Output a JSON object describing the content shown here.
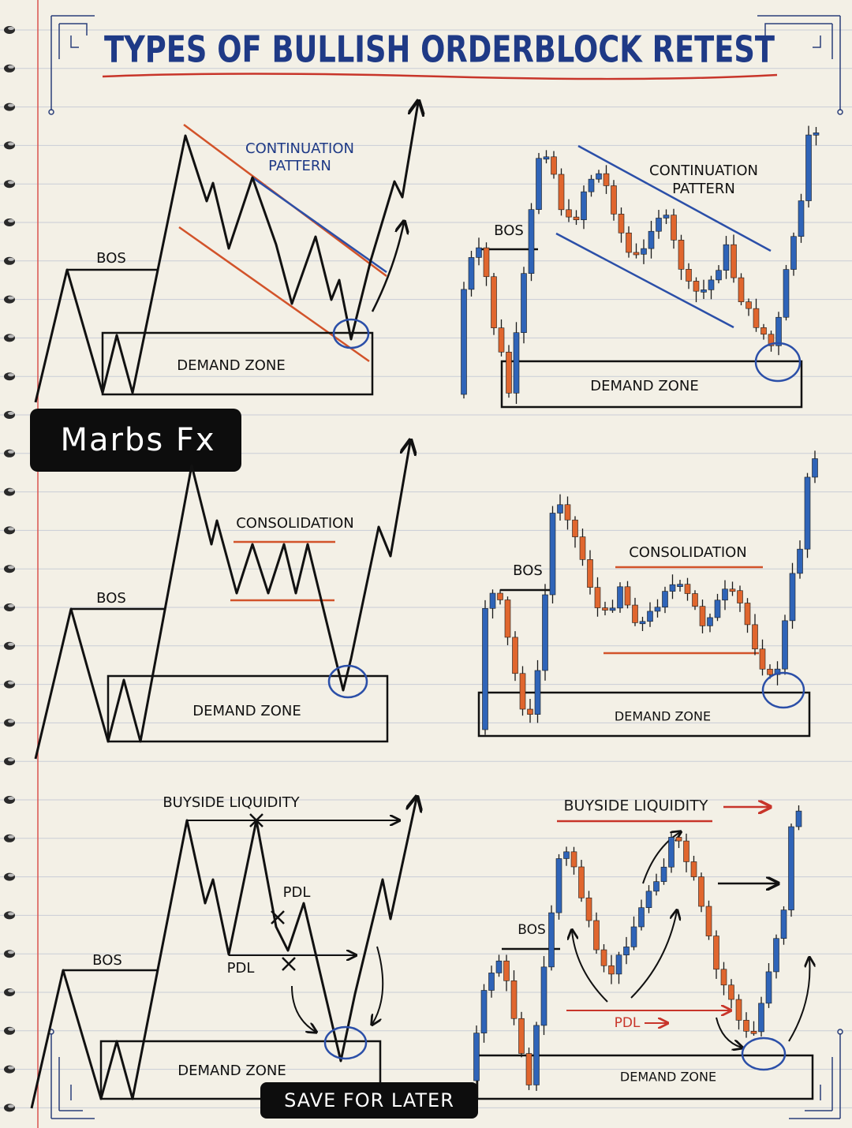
{
  "title": "TYPES OF BULLISH ORDERBLOCK RETEST",
  "brand": "Marbs Fx",
  "cta": "SAVE FOR LATER",
  "panels": [
    {
      "pattern": [
        "CONTINUATION",
        "PATTERN"
      ],
      "bos": "BOS",
      "zone": "DEMAND ZONE"
    },
    {
      "pattern": [
        "CONTINUATION",
        "PATTERN"
      ],
      "bos": "BOS",
      "zone": "DEMAND ZONE"
    },
    {
      "pattern": [
        "CONSOLIDATION"
      ],
      "bos": "BOS",
      "zone": "DEMAND ZONE"
    },
    {
      "pattern": [
        "CONSOLIDATION"
      ],
      "bos": "BOS",
      "zone": "DEMAND ZONE"
    },
    {
      "pattern": [
        "BUYSIDE LIQUIDITY"
      ],
      "bos": "BOS",
      "zone": "DEMAND ZONE",
      "pdl": [
        "PDL",
        "PDL"
      ]
    },
    {
      "pattern": [
        "BUYSIDE LIQUIDITY"
      ],
      "bos": "BOS",
      "zone": "DEMAND ZONE",
      "pdl": [
        "PDL"
      ]
    }
  ]
}
